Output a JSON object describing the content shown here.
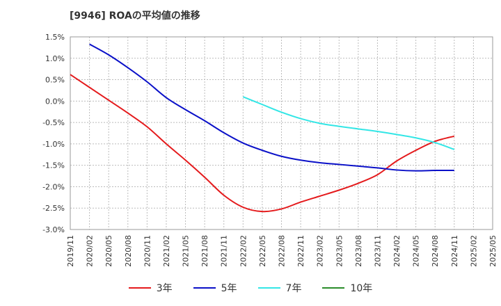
{
  "chart_data": {
    "type": "line",
    "title": "[9946]  ROAの平均値の推移",
    "xlabel": "",
    "ylabel": "",
    "ylim": [
      -3.0,
      1.5
    ],
    "y_ticks": [
      "1.5%",
      "1.0%",
      "0.5%",
      "0.0%",
      "-0.5%",
      "-1.0%",
      "-1.5%",
      "-2.0%",
      "-2.5%",
      "-3.0%"
    ],
    "y_tick_values": [
      1.5,
      1.0,
      0.5,
      0.0,
      -0.5,
      -1.0,
      -1.5,
      -2.0,
      -2.5,
      -3.0
    ],
    "x": [
      "2019/11",
      "2020/02",
      "2020/05",
      "2020/08",
      "2020/11",
      "2021/02",
      "2021/05",
      "2021/08",
      "2021/11",
      "2022/02",
      "2022/05",
      "2022/08",
      "2022/11",
      "2023/02",
      "2023/05",
      "2023/08",
      "2023/11",
      "2024/02",
      "2024/05",
      "2024/08",
      "2024/11",
      "2025/02",
      "2025/05"
    ],
    "grid": true,
    "legend_position": "bottom",
    "series": [
      {
        "name": "3年",
        "color": "#e41a1c",
        "values": [
          0.62,
          0.32,
          0.02,
          -0.28,
          -0.6,
          -1.0,
          -1.38,
          -1.78,
          -2.2,
          -2.48,
          -2.58,
          -2.52,
          -2.36,
          -2.22,
          -2.08,
          -1.92,
          -1.72,
          -1.4,
          -1.15,
          -0.94,
          -0.82,
          null,
          null
        ]
      },
      {
        "name": "5年",
        "color": "#0a10c8",
        "values": [
          null,
          1.33,
          1.08,
          0.78,
          0.45,
          0.08,
          -0.2,
          -0.46,
          -0.74,
          -0.98,
          -1.15,
          -1.29,
          -1.38,
          -1.44,
          -1.48,
          -1.52,
          -1.56,
          -1.61,
          -1.63,
          -1.62,
          -1.62,
          null,
          null
        ]
      },
      {
        "name": "7年",
        "color": "#33e6e6",
        "values": [
          null,
          null,
          null,
          null,
          null,
          null,
          null,
          null,
          null,
          0.1,
          -0.08,
          -0.26,
          -0.41,
          -0.52,
          -0.59,
          -0.65,
          -0.71,
          -0.78,
          -0.86,
          -0.97,
          -1.13,
          null,
          null
        ]
      },
      {
        "name": "10年",
        "color": "#2a8c2a",
        "values": [
          null,
          null,
          null,
          null,
          null,
          null,
          null,
          null,
          null,
          null,
          null,
          null,
          null,
          null,
          null,
          null,
          null,
          null,
          null,
          null,
          null,
          null,
          null
        ]
      }
    ]
  }
}
